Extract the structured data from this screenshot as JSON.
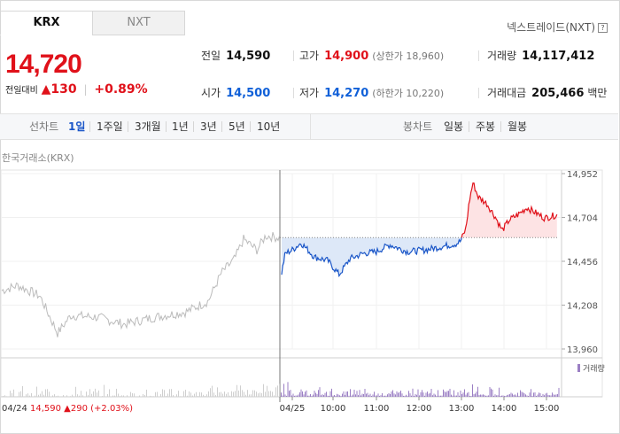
{
  "tabs": [
    {
      "label": "KRX"
    },
    {
      "label": "NXT"
    }
  ],
  "nextrade_label": "넥스트레이드(NXT)",
  "help_icon": "?",
  "price": "14,720",
  "change": {
    "label": "전일대비",
    "arrow": "▲",
    "amount": "130",
    "percent": "+0.89%"
  },
  "stats": {
    "prev_close": {
      "label": "전일",
      "value": "14,590"
    },
    "high": {
      "label": "고가",
      "value": "14,900",
      "sub": "(상한가 18,960)"
    },
    "volume": {
      "label": "거래량",
      "value": "14,117,412"
    },
    "open": {
      "label": "시가",
      "value": "14,500"
    },
    "low": {
      "label": "저가",
      "value": "14,270",
      "sub": "(하한가 10,220)"
    },
    "trade_value": {
      "label": "거래대금",
      "value": "205,466",
      "unit": "백만"
    }
  },
  "toolbar": {
    "line_label": "선차트",
    "periods": [
      "1일",
      "1주일",
      "3개월",
      "1년",
      "3년",
      "5년",
      "10년"
    ],
    "candle_label": "봉차트",
    "candles": [
      "일봉",
      "주봉",
      "월봉"
    ]
  },
  "exchange_label": "한국거래소(KRX)",
  "chart_data": {
    "type": "line",
    "y_ticks": [
      "14,952",
      "14,704",
      "14,456",
      "14,208",
      "13,960"
    ],
    "x_ticks": [
      "04/25",
      "10:00",
      "11:00",
      "12:00",
      "13:00",
      "14:00",
      "15:00"
    ],
    "ylim": [
      13960,
      14952
    ],
    "prev_close_value": 14590,
    "volume_legend": "거래량",
    "prev_day_note": {
      "date": "04/24",
      "price": "14,590",
      "arrow": "▲",
      "change": "290",
      "percent": "(+2.03%)"
    },
    "colors": {
      "up": "#e0111a",
      "down": "#1a56c8",
      "prev": "#bbbbbb",
      "volume": "#9b7fc4"
    }
  }
}
